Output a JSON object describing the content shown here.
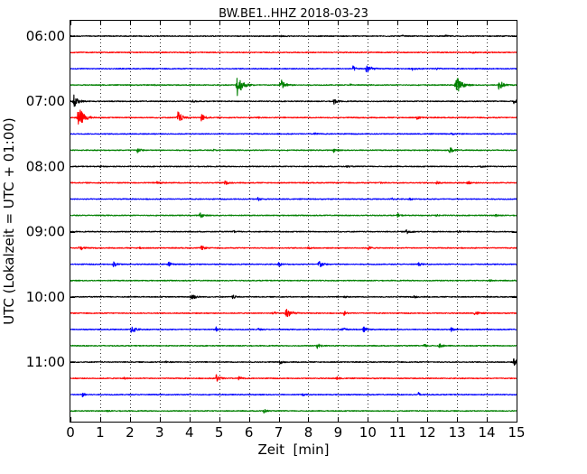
{
  "chart_data": {
    "type": "line",
    "title": "BW.BE1..HHZ 2018-03-23",
    "xlabel": "Zeit  [min]",
    "ylabel": "UTC (Lokalzeit = UTC + 01:00)",
    "xlim": [
      0,
      15
    ],
    "x_ticks": [
      0,
      1,
      2,
      3,
      4,
      5,
      6,
      7,
      8,
      9,
      10,
      11,
      12,
      13,
      14,
      15
    ],
    "x_tick_labels": [
      "0",
      "1",
      "2",
      "3",
      "4",
      "5",
      "6",
      "7",
      "8",
      "9",
      "10",
      "11",
      "12",
      "13",
      "14",
      "15"
    ],
    "y_tick_labels": [
      "06:00",
      "07:00",
      "08:00",
      "09:00",
      "10:00",
      "11:00"
    ],
    "y_tick_rows": [
      0,
      4,
      8,
      12,
      16,
      20
    ],
    "vertical_grid": true,
    "grid_style": "dotted",
    "trace_colors": [
      "#000000",
      "#ff0000",
      "#0000ff",
      "#008000"
    ],
    "rows": [
      {
        "label": "06:00",
        "color": "#000000",
        "events": [
          [
            7.05,
            0.1
          ],
          [
            11.15,
            0.1
          ],
          [
            12.6,
            0.12
          ]
        ]
      },
      {
        "label": "06:15",
        "color": "#ff0000",
        "events": [
          [
            13.5,
            0.1
          ]
        ]
      },
      {
        "label": "06:30",
        "color": "#0000ff",
        "events": [
          [
            9.95,
            0.75
          ],
          [
            9.5,
            0.3
          ],
          [
            11.5,
            0.2
          ],
          [
            12.3,
            0.15
          ]
        ]
      },
      {
        "label": "06:45",
        "color": "#008000",
        "events": [
          [
            5.6,
            1.5
          ],
          [
            7.05,
            0.9
          ],
          [
            12.95,
            1.4
          ],
          [
            14.4,
            0.8
          ],
          [
            9.4,
            0.12
          ],
          [
            2.8,
            0.1
          ]
        ]
      },
      {
        "label": "07:00",
        "color": "#000000",
        "events": [
          [
            0.1,
            0.9
          ],
          [
            8.85,
            0.4
          ],
          [
            14.9,
            0.4
          ],
          [
            4.1,
            0.12
          ]
        ]
      },
      {
        "label": "07:15",
        "color": "#ff0000",
        "events": [
          [
            0.25,
            1.6
          ],
          [
            3.6,
            0.9
          ],
          [
            4.4,
            0.5
          ],
          [
            11.65,
            0.25
          ],
          [
            6.3,
            0.1
          ]
        ]
      },
      {
        "label": "07:30",
        "color": "#0000ff",
        "events": [
          [
            8.2,
            0.15
          ],
          [
            12.8,
            0.1
          ]
        ]
      },
      {
        "label": "07:45",
        "color": "#008000",
        "events": [
          [
            2.25,
            0.35
          ],
          [
            12.75,
            0.45
          ],
          [
            8.85,
            0.22
          ],
          [
            4.8,
            0.1
          ]
        ]
      },
      {
        "label": "08:00",
        "color": "#000000",
        "events": [
          [
            1.0,
            0.1
          ],
          [
            9.3,
            0.12
          ],
          [
            13.8,
            0.1
          ]
        ]
      },
      {
        "label": "08:15",
        "color": "#ff0000",
        "events": [
          [
            2.9,
            0.25
          ],
          [
            5.2,
            0.25
          ],
          [
            12.3,
            0.2
          ],
          [
            13.35,
            0.22
          ],
          [
            10.4,
            0.15
          ]
        ]
      },
      {
        "label": "08:30",
        "color": "#0000ff",
        "events": [
          [
            6.3,
            0.22
          ],
          [
            10.8,
            0.15
          ],
          [
            11.4,
            0.12
          ]
        ]
      },
      {
        "label": "08:45",
        "color": "#008000",
        "events": [
          [
            4.35,
            0.35
          ],
          [
            11.0,
            0.2
          ],
          [
            14.3,
            0.15
          ],
          [
            12.3,
            0.12
          ]
        ]
      },
      {
        "label": "09:00",
        "color": "#000000",
        "events": [
          [
            11.3,
            0.4
          ],
          [
            5.5,
            0.15
          ],
          [
            13.0,
            0.15
          ]
        ]
      },
      {
        "label": "09:15",
        "color": "#ff0000",
        "events": [
          [
            0.3,
            0.4
          ],
          [
            4.4,
            0.3
          ],
          [
            10.0,
            0.25
          ],
          [
            2.3,
            0.15
          ],
          [
            8.0,
            0.15
          ]
        ]
      },
      {
        "label": "09:30",
        "color": "#0000ff",
        "events": [
          [
            1.45,
            0.35
          ],
          [
            8.35,
            0.6
          ],
          [
            3.3,
            0.25
          ],
          [
            7.0,
            0.25
          ],
          [
            11.7,
            0.2
          ]
        ]
      },
      {
        "label": "09:45",
        "color": "#008000",
        "events": [
          [
            14.1,
            0.12
          ]
        ]
      },
      {
        "label": "10:00",
        "color": "#000000",
        "events": [
          [
            4.05,
            0.6
          ],
          [
            5.45,
            0.25
          ],
          [
            11.55,
            0.15
          ],
          [
            9.2,
            0.12
          ]
        ]
      },
      {
        "label": "10:15",
        "color": "#ff0000",
        "events": [
          [
            7.25,
            0.95
          ],
          [
            13.6,
            0.35
          ],
          [
            9.2,
            0.25
          ],
          [
            6.8,
            0.2
          ]
        ]
      },
      {
        "label": "10:30",
        "color": "#0000ff",
        "events": [
          [
            2.05,
            0.65
          ],
          [
            4.9,
            0.3
          ],
          [
            9.15,
            0.3
          ],
          [
            9.85,
            0.35
          ],
          [
            12.8,
            0.25
          ],
          [
            6.3,
            0.15
          ]
        ]
      },
      {
        "label": "10:45",
        "color": "#008000",
        "events": [
          [
            8.3,
            0.3
          ],
          [
            12.4,
            0.3
          ],
          [
            11.9,
            0.2
          ]
        ]
      },
      {
        "label": "11:00",
        "color": "#000000",
        "events": [
          [
            14.9,
            0.5
          ],
          [
            7.05,
            0.2
          ],
          [
            3.2,
            0.15
          ]
        ]
      },
      {
        "label": "11:15",
        "color": "#ff0000",
        "events": [
          [
            4.9,
            0.55
          ],
          [
            5.65,
            0.25
          ],
          [
            8.95,
            0.2
          ],
          [
            1.8,
            0.12
          ]
        ]
      },
      {
        "label": "11:30",
        "color": "#0000ff",
        "events": [
          [
            0.4,
            0.25
          ],
          [
            11.7,
            0.25
          ],
          [
            7.8,
            0.12
          ]
        ]
      },
      {
        "label": "11:45",
        "color": "#008000",
        "events": [
          [
            6.5,
            0.25
          ],
          [
            1.2,
            0.1
          ]
        ]
      }
    ]
  }
}
